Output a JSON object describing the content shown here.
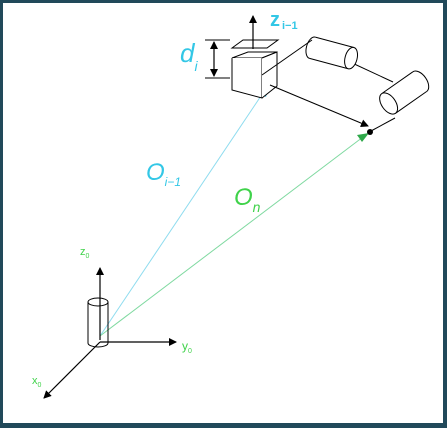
{
  "labels": {
    "d": "d",
    "d_sub": "i",
    "z_top": "z",
    "z_top_sub": "i−1",
    "o_prev": "O",
    "o_prev_sub": "i−1",
    "o_n": "O",
    "o_n_sub": "n",
    "z0": "z",
    "z0_sub": "0",
    "y0": "y",
    "y0_sub": "0",
    "x0": "x",
    "x0_sub": "0"
  },
  "colors": {
    "background": "#21495a",
    "canvas": "#ffffff",
    "vector_prev": "#8fdcef",
    "vector_n": "#7fd9a0",
    "label_cyan": "#33c7e6",
    "label_green": "#3fd24a",
    "arrowhead_cyan": "#3fb6dd",
    "arrowhead_green": "#2fa84a",
    "ink": "#000000"
  },
  "icons": {
    "base_joint": "cylinder-icon",
    "prismatic_joint": "cube-icon",
    "revolute_joint_1": "cylinder-icon",
    "revolute_joint_2": "cylinder-icon"
  }
}
